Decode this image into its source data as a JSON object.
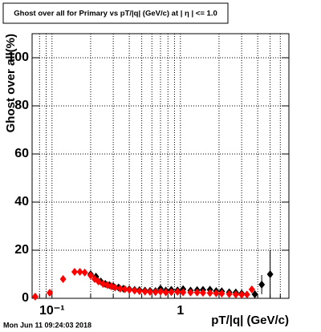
{
  "chart_data": {
    "type": "scatter",
    "title": "Ghost over all for Primary vs pT/|q| (GeV/c) at | η | <= 1.0",
    "x_label": "pT/|q| (GeV/c)",
    "y_label": "Ghost over all(%)",
    "timestamp": "Mon Jun 11 09:24:03 2018",
    "log_x": true,
    "grid": true,
    "xlim": [
      0.07,
      7
    ],
    "ylim": [
      0,
      110
    ],
    "xticks": [
      {
        "value": 0.1,
        "label": "10⁻¹"
      },
      1
    ],
    "xminorticks": [
      0.08,
      0.09,
      0.2,
      0.3,
      0.4,
      0.5,
      0.6,
      0.7,
      0.8,
      0.9,
      2,
      3,
      4,
      5,
      6
    ],
    "yticks": [
      0,
      20,
      40,
      60,
      80,
      100
    ],
    "series": [
      {
        "color": "#000000",
        "x": [
          0.2,
          0.22,
          0.24,
          0.26,
          0.28,
          0.3,
          0.33,
          0.36,
          0.4,
          0.44,
          0.48,
          0.53,
          0.58,
          0.64,
          0.7,
          0.77,
          0.85,
          0.95,
          1.05,
          1.2,
          1.35,
          1.5,
          1.7,
          1.9,
          2.1,
          2.4,
          2.7,
          3.0,
          3.8,
          4.3,
          5.0
        ],
        "values": [
          10,
          9,
          7,
          6,
          5.5,
          5,
          4.5,
          4,
          3.8,
          3.5,
          3.4,
          3.2,
          3.1,
          3,
          4,
          3.2,
          3.5,
          3.3,
          3.8,
          3.2,
          3.4,
          3.5,
          3.6,
          3,
          2.9,
          2.5,
          2.4,
          2,
          1.7,
          5.7,
          10
        ],
        "errors": [
          0.8,
          0.7,
          0.6,
          0.6,
          0.5,
          0.5,
          0.5,
          0.5,
          0.5,
          0.5,
          0.5,
          0.5,
          0.5,
          0.5,
          0.6,
          0.6,
          0.6,
          0.7,
          0.7,
          0.7,
          0.8,
          0.9,
          1,
          1,
          1.1,
          1.2,
          1.4,
          1.5,
          1.7,
          4,
          10
        ]
      },
      {
        "color": "#ff0000",
        "x": [
          0.074,
          0.096,
          0.122,
          0.15,
          0.165,
          0.18,
          0.2,
          0.215,
          0.23,
          0.25,
          0.27,
          0.29,
          0.31,
          0.34,
          0.37,
          0.4,
          0.44,
          0.48,
          0.53,
          0.58,
          0.64,
          0.7,
          0.77,
          0.85,
          0.95,
          1.05,
          1.2,
          1.35,
          1.5,
          1.7,
          1.9,
          2.1,
          2.4,
          2.7,
          3.0,
          3.3,
          3.6
        ],
        "values": [
          0.7,
          2.3,
          8,
          11,
          11,
          10.7,
          9.5,
          8,
          7,
          6,
          5.5,
          5,
          4.5,
          4,
          3.8,
          3.5,
          3.2,
          3,
          2.8,
          2.7,
          2.6,
          2.8,
          2.5,
          2.6,
          2.7,
          2.5,
          2.4,
          2.4,
          2.3,
          2.2,
          2.1,
          2,
          1.8,
          1.6,
          1.5,
          1.6,
          3.7
        ]
      }
    ]
  }
}
